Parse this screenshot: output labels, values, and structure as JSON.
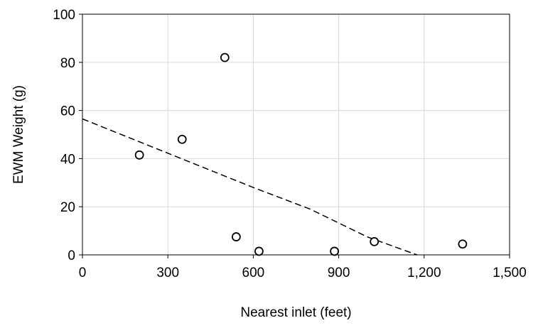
{
  "chart_data": {
    "type": "scatter",
    "xlabel": "Nearest inlet (feet)",
    "ylabel": "EWM Weight (g)",
    "xlim": [
      0,
      1500
    ],
    "ylim": [
      0,
      100
    ],
    "x_ticks": [
      0,
      300,
      600,
      900,
      1200,
      1500
    ],
    "x_tick_labels": [
      "0",
      "300",
      "600",
      "900",
      "1,200",
      "1,500"
    ],
    "y_ticks": [
      0,
      20,
      40,
      60,
      80,
      100
    ],
    "y_tick_labels": [
      "0",
      "20",
      "40",
      "60",
      "80",
      "100"
    ],
    "grid": true,
    "series": [
      {
        "kind": "points",
        "marker": "open-circle",
        "color": "#000000",
        "x": [
          200,
          350,
          500,
          540,
          620,
          885,
          1025,
          1335
        ],
        "y": [
          41.5,
          48,
          82,
          7.5,
          1.5,
          1.5,
          5.5,
          4.5
        ]
      },
      {
        "kind": "trendline",
        "style": "dashed",
        "color": "#000000",
        "x": [
          0,
          200,
          400,
          600,
          800,
          1000,
          1175
        ],
        "y": [
          56.5,
          47,
          37.5,
          28,
          19,
          7.5,
          0
        ]
      }
    ]
  }
}
